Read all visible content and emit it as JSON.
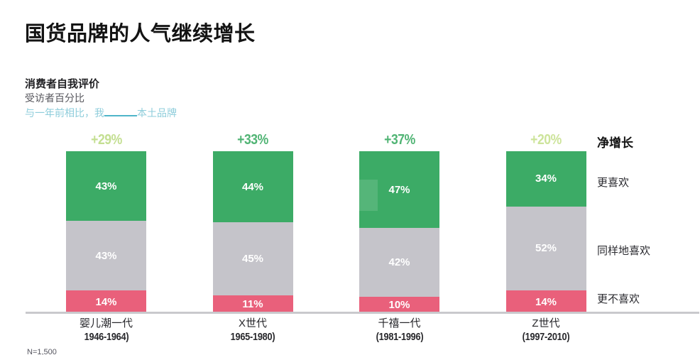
{
  "header": {
    "title": "国货品牌的人气继续增长",
    "eval_label": "消费者自我评价",
    "pct_label": "受访者百分比",
    "prompt": {
      "prefix": "与一年前相比，我",
      "suffix": "本土品牌"
    }
  },
  "legend": {
    "header": "净增长",
    "items": [
      {
        "label": "更喜欢",
        "color": "#3cab66"
      },
      {
        "label": "同样地喜欢",
        "color": "#c5c4ca"
      },
      {
        "label": "更不喜欢",
        "color": "#e9607b"
      }
    ]
  },
  "footnote": {
    "text": "N=1,500"
  },
  "chart_data": {
    "type": "bar",
    "stacked": true,
    "unit": "%",
    "title": "消费者自我评价",
    "ylabel": "受访者百分比",
    "ylim": [
      0,
      100
    ],
    "grid": false,
    "legend_position": "right",
    "categories": [
      {
        "name": "婴儿潮一代",
        "years": "1946-1964)"
      },
      {
        "name": "X世代",
        "years": "1965-1980)"
      },
      {
        "name": "千禧一代",
        "years": "(1981-1996)"
      },
      {
        "name": "Z世代",
        "years": "(1997-2010)"
      }
    ],
    "series": [
      {
        "name": "更喜欢",
        "color": "#3cab66",
        "values": [
          43,
          44,
          47,
          34
        ]
      },
      {
        "name": "同样地喜欢",
        "color": "#c5c4ca",
        "values": [
          43,
          45,
          42,
          52
        ]
      },
      {
        "name": "更不喜欢",
        "color": "#e9607b",
        "values": [
          14,
          11,
          10,
          14
        ]
      }
    ],
    "net_growth": {
      "label": "净增长",
      "values": [
        "+29%",
        "+33%",
        "+37%",
        "+20%"
      ],
      "colors": [
        "#c4df92",
        "#50b474",
        "#50b474",
        "#cde49b"
      ]
    }
  }
}
